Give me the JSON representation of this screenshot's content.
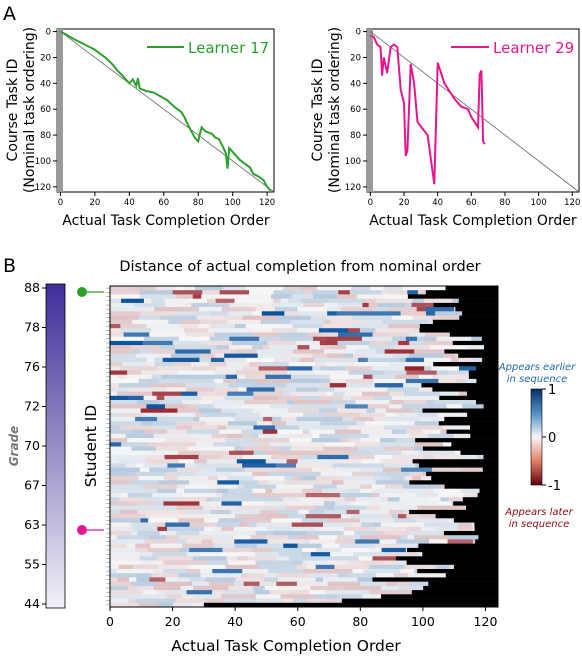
{
  "panels": {
    "a": "A",
    "b": "B"
  },
  "colors": {
    "learner17": "#2ca02c",
    "learner29": "#e6168e",
    "heat_pos": "#08519c",
    "heat_neg": "#8b0a14",
    "grade": "#3f2e9a"
  },
  "chart_data": [
    {
      "type": "line",
      "legend": [
        "Learner 17"
      ],
      "xlabel": "Actual Task Completion Order",
      "ylabel": [
        "Course Task ID",
        "(Nominal task ordering)"
      ],
      "xlim": [
        -2,
        124
      ],
      "ylim": [
        124,
        -2
      ],
      "xticks": [
        0,
        20,
        40,
        60,
        80,
        100,
        120
      ],
      "yticks": [
        0,
        20,
        40,
        60,
        80,
        100,
        120
      ],
      "series": [
        {
          "name": "Learner 17",
          "points": [
            [
              0,
              0
            ],
            [
              3,
              2
            ],
            [
              8,
              6
            ],
            [
              14,
              10
            ],
            [
              20,
              14
            ],
            [
              26,
              20
            ],
            [
              30,
              25
            ],
            [
              33,
              30
            ],
            [
              36,
              34
            ],
            [
              38,
              37
            ],
            [
              40,
              40
            ],
            [
              42,
              37
            ],
            [
              44,
              42
            ],
            [
              45,
              36
            ],
            [
              46,
              44
            ],
            [
              50,
              46
            ],
            [
              54,
              47
            ],
            [
              58,
              50
            ],
            [
              62,
              53
            ],
            [
              66,
              58
            ],
            [
              70,
              62
            ],
            [
              72,
              66
            ],
            [
              74,
              72
            ],
            [
              76,
              77
            ],
            [
              78,
              82
            ],
            [
              80,
              85
            ],
            [
              81,
              79
            ],
            [
              82,
              74
            ],
            [
              84,
              77
            ],
            [
              88,
              79
            ],
            [
              90,
              82
            ],
            [
              92,
              83
            ],
            [
              94,
              88
            ],
            [
              96,
              94
            ],
            [
              97,
              106
            ],
            [
              98,
              90
            ],
            [
              100,
              93
            ],
            [
              104,
              99
            ],
            [
              110,
              105
            ],
            [
              112,
              110
            ],
            [
              115,
              112
            ],
            [
              118,
              115
            ],
            [
              120,
              120
            ],
            [
              122,
              123
            ]
          ]
        }
      ],
      "diagonal": [
        [
          0,
          0
        ],
        [
          124,
          124
        ]
      ]
    },
    {
      "type": "line",
      "legend": [
        "Learner 29"
      ],
      "xlabel": "Actual Task Completion Order",
      "ylabel": [
        "Course Task ID",
        "(Nominal task ordering)"
      ],
      "xlim": [
        -2,
        124
      ],
      "ylim": [
        124,
        -2
      ],
      "xticks": [
        0,
        20,
        40,
        60,
        80,
        100,
        120
      ],
      "yticks": [
        0,
        20,
        40,
        60,
        80,
        100,
        120
      ],
      "series": [
        {
          "name": "Learner 29",
          "points": [
            [
              0,
              3
            ],
            [
              2,
              4
            ],
            [
              4,
              10
            ],
            [
              6,
              12
            ],
            [
              7,
              34
            ],
            [
              8,
              20
            ],
            [
              10,
              32
            ],
            [
              12,
              12
            ],
            [
              14,
              10
            ],
            [
              16,
              12
            ],
            [
              18,
              45
            ],
            [
              20,
              55
            ],
            [
              21,
              96
            ],
            [
              22,
              92
            ],
            [
              24,
              25
            ],
            [
              26,
              40
            ],
            [
              28,
              70
            ],
            [
              34,
              80
            ],
            [
              38,
              118
            ],
            [
              40,
              24
            ],
            [
              44,
              40
            ],
            [
              50,
              52
            ],
            [
              54,
              58
            ],
            [
              58,
              60
            ],
            [
              60,
              66
            ],
            [
              62,
              70
            ],
            [
              64,
              74
            ],
            [
              65,
              33
            ],
            [
              66,
              30
            ],
            [
              67,
              85
            ],
            [
              68,
              87
            ]
          ]
        }
      ],
      "diagonal": [
        [
          0,
          0
        ],
        [
          124,
          124
        ]
      ]
    },
    {
      "type": "heatmap",
      "title": "Distance of actual completion from nominal order",
      "xlabel": "Actual Task Completion Order",
      "ylabel": "Student ID",
      "xlim": [
        0,
        124
      ],
      "xticks": [
        0,
        20,
        40,
        60,
        80,
        100,
        120
      ],
      "n_students": 76,
      "colorbar": {
        "min": -1,
        "max": 1,
        "ticks": [
          1,
          0,
          -1
        ],
        "label_top": [
          "Appears earlier",
          "in sequence"
        ],
        "label_bottom": [
          "Appears later",
          "in sequence"
        ]
      },
      "grade_bar": {
        "label": "Grade",
        "ticks": [
          88,
          78,
          76,
          72,
          70,
          67,
          63,
          55,
          44
        ]
      },
      "markers": [
        {
          "learner": 17,
          "row": 1
        },
        {
          "learner": 29,
          "row": 56
        }
      ]
    }
  ]
}
